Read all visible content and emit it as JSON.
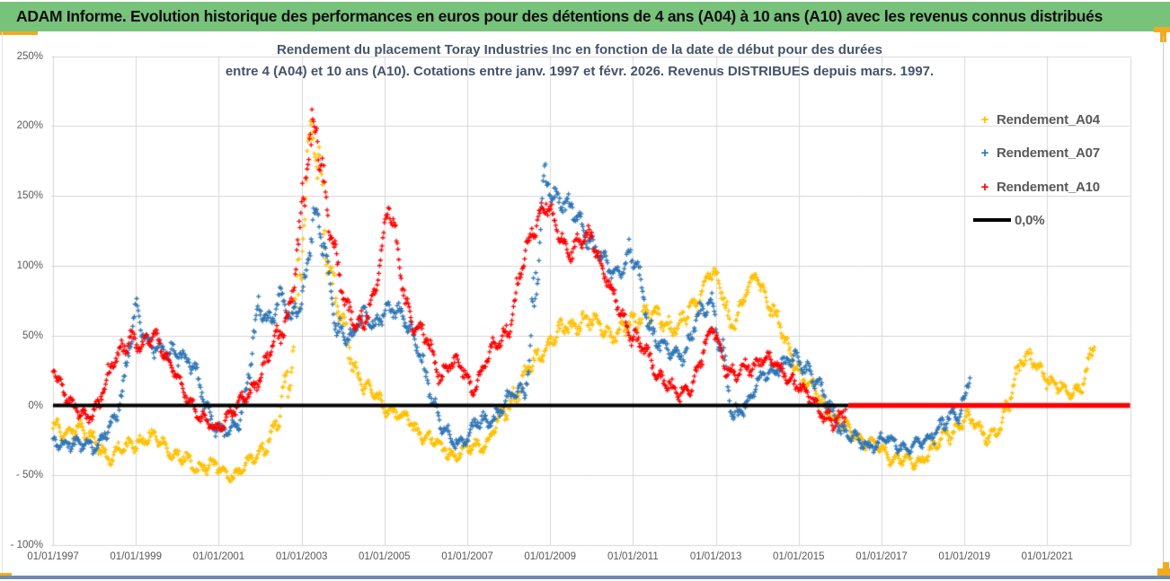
{
  "header": {
    "title": "ADAM Informe. Evolution historique des performances en euros pour des détentions de 4 ans (A04) à 10 ans (A10) avec les revenus connus distribués"
  },
  "chart_data": {
    "type": "scatter",
    "title_line1": "Rendement du placement Toray Industries Inc en fonction de la date de début pour des durées",
    "title_line2": "entre 4 (A04) et 10 ans (A10). Cotations entre janv. 1997 et févr. 2026. Revenus DISTRIBUES depuis mars. 1997.",
    "x_axis": {
      "tick_labels": [
        "01/01/1997",
        "01/01/1999",
        "01/01/2001",
        "01/01/2003",
        "01/01/2005",
        "01/01/2007",
        "01/01/2009",
        "01/01/2011",
        "01/01/2013",
        "01/01/2015",
        "01/01/2017",
        "01/01/2019",
        "01/01/2021"
      ],
      "min_year": 1997,
      "max_year": 2023,
      "tick_step_years": 2,
      "grid": true
    },
    "y_axis": {
      "tick_labels": [
        "250%",
        "200%",
        "150%",
        "100%",
        "50%",
        "0%",
        "- 50%",
        "- 100%"
      ],
      "max": 250,
      "min": -100,
      "step": 50,
      "grid": true
    },
    "legend": [
      {
        "label": "Rendement_A04",
        "color": "#FFC000",
        "marker": "plus"
      },
      {
        "label": "Rendement_A07",
        "color": "#2E75B6",
        "marker": "plus"
      },
      {
        "label": "Rendement_A10",
        "color": "#FF0000",
        "marker": "plus"
      },
      {
        "label": "0,0%",
        "color": "#000000",
        "marker": "line"
      }
    ],
    "series": [
      {
        "name": "Rendement_A04",
        "color": "#FFC000",
        "points_per_year": 52,
        "keypoints": [
          [
            1997.0,
            -15,
            8
          ],
          [
            1997.3,
            -22,
            8
          ],
          [
            1997.6,
            -14,
            8
          ],
          [
            1998.0,
            -28,
            8
          ],
          [
            1998.4,
            -35,
            8
          ],
          [
            1998.8,
            -30,
            8
          ],
          [
            1999.2,
            -23,
            8
          ],
          [
            1999.6,
            -26,
            8
          ],
          [
            2000.0,
            -35,
            8
          ],
          [
            2000.4,
            -44,
            7
          ],
          [
            2000.8,
            -42,
            7
          ],
          [
            2001.2,
            -50,
            6
          ],
          [
            2001.5,
            -47,
            6
          ],
          [
            2001.8,
            -40,
            7
          ],
          [
            2002.1,
            -28,
            8
          ],
          [
            2002.4,
            -15,
            10
          ],
          [
            2002.7,
            20,
            25
          ],
          [
            2003.0,
            120,
            38
          ],
          [
            2003.25,
            195,
            30
          ],
          [
            2003.45,
            160,
            35
          ],
          [
            2003.7,
            95,
            25
          ],
          [
            2003.95,
            60,
            15
          ],
          [
            2004.3,
            25,
            10
          ],
          [
            2004.7,
            8,
            8
          ],
          [
            2005.1,
            -2,
            7
          ],
          [
            2005.5,
            -10,
            7
          ],
          [
            2005.9,
            -20,
            7
          ],
          [
            2006.3,
            -30,
            7
          ],
          [
            2006.7,
            -35,
            7
          ],
          [
            2007.1,
            -31,
            7
          ],
          [
            2007.5,
            -25,
            8
          ],
          [
            2007.9,
            -5,
            10
          ],
          [
            2008.2,
            12,
            10
          ],
          [
            2008.6,
            30,
            10
          ],
          [
            2009.0,
            47,
            10
          ],
          [
            2009.4,
            55,
            10
          ],
          [
            2009.8,
            62,
            9
          ],
          [
            2010.2,
            57,
            9
          ],
          [
            2010.6,
            50,
            9
          ],
          [
            2011.0,
            60,
            10
          ],
          [
            2011.3,
            68,
            9
          ],
          [
            2011.7,
            60,
            9
          ],
          [
            2012.1,
            57,
            9
          ],
          [
            2012.5,
            72,
            10
          ],
          [
            2012.85,
            98,
            8
          ],
          [
            2013.1,
            85,
            10
          ],
          [
            2013.35,
            58,
            8
          ],
          [
            2013.7,
            78,
            10
          ],
          [
            2014.0,
            92,
            8
          ],
          [
            2014.35,
            70,
            10
          ],
          [
            2014.7,
            42,
            9
          ],
          [
            2015.1,
            22,
            8
          ],
          [
            2015.5,
            5,
            8
          ],
          [
            2015.8,
            -8,
            7
          ],
          [
            2016.2,
            -18,
            7
          ],
          [
            2016.6,
            -25,
            7
          ],
          [
            2017.0,
            -33,
            7
          ],
          [
            2017.4,
            -38,
            6
          ],
          [
            2017.8,
            -42,
            6
          ],
          [
            2018.2,
            -32,
            7
          ],
          [
            2018.6,
            -20,
            8
          ],
          [
            2019.0,
            -10,
            8
          ],
          [
            2019.3,
            -14,
            7
          ],
          [
            2019.6,
            -22,
            7
          ],
          [
            2019.9,
            -18,
            8
          ],
          [
            2020.1,
            8,
            16
          ],
          [
            2020.35,
            36,
            10
          ],
          [
            2020.6,
            32,
            9
          ],
          [
            2020.9,
            24,
            8
          ],
          [
            2021.2,
            14,
            8
          ],
          [
            2021.5,
            8,
            7
          ],
          [
            2021.8,
            14,
            8
          ],
          [
            2022.0,
            28,
            10
          ],
          [
            2022.15,
            48,
            8
          ]
        ]
      },
      {
        "name": "Rendement_A07",
        "color": "#2E75B6",
        "points_per_year": 52,
        "keypoints": [
          [
            1997.0,
            -24,
            7
          ],
          [
            1997.4,
            -30,
            7
          ],
          [
            1997.8,
            -26,
            7
          ],
          [
            1998.1,
            -30,
            7
          ],
          [
            1998.4,
            -15,
            9
          ],
          [
            1998.7,
            15,
            12
          ],
          [
            1999.0,
            65,
            12
          ],
          [
            1999.2,
            52,
            10
          ],
          [
            1999.5,
            40,
            9
          ],
          [
            1999.8,
            36,
            9
          ],
          [
            2000.1,
            40,
            9
          ],
          [
            2000.4,
            25,
            9
          ],
          [
            2000.7,
            0,
            9
          ],
          [
            2001.0,
            -18,
            8
          ],
          [
            2001.3,
            -22,
            8
          ],
          [
            2001.6,
            0,
            10
          ],
          [
            2001.95,
            70,
            12
          ],
          [
            2002.2,
            60,
            10
          ],
          [
            2002.5,
            80,
            9
          ],
          [
            2002.75,
            58,
            10
          ],
          [
            2003.05,
            85,
            15
          ],
          [
            2003.3,
            140,
            12
          ],
          [
            2003.55,
            110,
            15
          ],
          [
            2003.85,
            60,
            12
          ],
          [
            2004.2,
            45,
            10
          ],
          [
            2004.5,
            68,
            9
          ],
          [
            2004.8,
            56,
            9
          ],
          [
            2005.1,
            68,
            9
          ],
          [
            2005.35,
            72,
            9
          ],
          [
            2005.7,
            48,
            9
          ],
          [
            2006.0,
            22,
            9
          ],
          [
            2006.35,
            -12,
            9
          ],
          [
            2006.6,
            -26,
            7
          ],
          [
            2006.9,
            -24,
            7
          ],
          [
            2007.2,
            -14,
            7
          ],
          [
            2007.5,
            -11,
            7
          ],
          [
            2007.8,
            -3,
            8
          ],
          [
            2008.1,
            8,
            8
          ],
          [
            2008.4,
            14,
            9
          ],
          [
            2008.6,
            60,
            40
          ],
          [
            2008.85,
            160,
            14
          ],
          [
            2009.1,
            152,
            12
          ],
          [
            2009.4,
            142,
            11
          ],
          [
            2009.7,
            132,
            11
          ],
          [
            2010.0,
            118,
            10
          ],
          [
            2010.3,
            102,
            10
          ],
          [
            2010.6,
            94,
            10
          ],
          [
            2010.9,
            108,
            12
          ],
          [
            2011.1,
            98,
            12
          ],
          [
            2011.4,
            58,
            10
          ],
          [
            2011.7,
            42,
            9
          ],
          [
            2012.0,
            35,
            9
          ],
          [
            2012.3,
            42,
            9
          ],
          [
            2012.6,
            62,
            10
          ],
          [
            2012.9,
            78,
            9
          ],
          [
            2013.15,
            40,
            15
          ],
          [
            2013.4,
            -10,
            8
          ],
          [
            2013.7,
            2,
            8
          ],
          [
            2014.0,
            14,
            8
          ],
          [
            2014.3,
            24,
            8
          ],
          [
            2014.6,
            30,
            8
          ],
          [
            2014.9,
            33,
            8
          ],
          [
            2015.2,
            28,
            8
          ],
          [
            2015.5,
            12,
            8
          ],
          [
            2015.8,
            -4,
            8
          ],
          [
            2016.1,
            -18,
            7
          ],
          [
            2016.45,
            -26,
            7
          ],
          [
            2016.8,
            -28,
            6
          ],
          [
            2017.1,
            -24,
            6
          ],
          [
            2017.4,
            -28,
            6
          ],
          [
            2017.7,
            -30,
            6
          ],
          [
            2018.0,
            -27,
            6
          ],
          [
            2018.3,
            -18,
            7
          ],
          [
            2018.6,
            -11,
            7
          ],
          [
            2018.9,
            -4,
            8
          ],
          [
            2019.05,
            12,
            10
          ],
          [
            2019.15,
            26,
            6
          ]
        ]
      },
      {
        "name": "Rendement_A10",
        "color": "#FF0000",
        "points_per_year": 52,
        "keypoints": [
          [
            1997.0,
            25,
            9
          ],
          [
            1997.25,
            12,
            9
          ],
          [
            1997.5,
            -2,
            8
          ],
          [
            1997.8,
            -10,
            7
          ],
          [
            1998.05,
            0,
            8
          ],
          [
            1998.3,
            18,
            9
          ],
          [
            1998.6,
            38,
            9
          ],
          [
            1998.9,
            52,
            8
          ],
          [
            1999.1,
            40,
            8
          ],
          [
            1999.35,
            48,
            8
          ],
          [
            1999.5,
            52,
            8
          ],
          [
            1999.75,
            32,
            8
          ],
          [
            2000.0,
            18,
            8
          ],
          [
            2000.3,
            4,
            8
          ],
          [
            2000.6,
            -10,
            7
          ],
          [
            2000.9,
            -17,
            7
          ],
          [
            2001.2,
            -8,
            8
          ],
          [
            2001.5,
            0,
            8
          ],
          [
            2001.8,
            12,
            9
          ],
          [
            2002.1,
            28,
            10
          ],
          [
            2002.4,
            48,
            10
          ],
          [
            2002.7,
            68,
            14
          ],
          [
            2002.95,
            115,
            25
          ],
          [
            2003.15,
            180,
            25
          ],
          [
            2003.35,
            210,
            18
          ],
          [
            2003.55,
            150,
            20
          ],
          [
            2003.75,
            112,
            15
          ],
          [
            2004.0,
            82,
            12
          ],
          [
            2004.25,
            62,
            10
          ],
          [
            2004.5,
            54,
            10
          ],
          [
            2004.75,
            80,
            12
          ],
          [
            2004.95,
            120,
            12
          ],
          [
            2005.1,
            142,
            10
          ],
          [
            2005.25,
            120,
            12
          ],
          [
            2005.45,
            85,
            12
          ],
          [
            2005.65,
            62,
            10
          ],
          [
            2005.9,
            52,
            9
          ],
          [
            2006.1,
            40,
            9
          ],
          [
            2006.35,
            22,
            8
          ],
          [
            2006.6,
            30,
            8
          ],
          [
            2006.85,
            27,
            8
          ],
          [
            2007.1,
            13,
            8
          ],
          [
            2007.4,
            26,
            9
          ],
          [
            2007.7,
            44,
            9
          ],
          [
            2008.0,
            56,
            10
          ],
          [
            2008.3,
            92,
            12
          ],
          [
            2008.6,
            130,
            12
          ],
          [
            2008.9,
            145,
            10
          ],
          [
            2009.2,
            122,
            10
          ],
          [
            2009.5,
            110,
            10
          ],
          [
            2009.8,
            118,
            10
          ],
          [
            2010.0,
            122,
            10
          ],
          [
            2010.3,
            96,
            10
          ],
          [
            2010.6,
            72,
            9
          ],
          [
            2010.9,
            55,
            9
          ],
          [
            2011.2,
            42,
            9
          ],
          [
            2011.5,
            28,
            9
          ],
          [
            2011.8,
            18,
            8
          ],
          [
            2012.1,
            4,
            8
          ],
          [
            2012.4,
            16,
            8
          ],
          [
            2012.7,
            38,
            9
          ],
          [
            2012.95,
            55,
            8
          ],
          [
            2013.2,
            32,
            9
          ],
          [
            2013.5,
            20,
            8
          ],
          [
            2013.8,
            28,
            8
          ],
          [
            2014.1,
            33,
            8
          ],
          [
            2014.4,
            30,
            8
          ],
          [
            2014.7,
            22,
            8
          ],
          [
            2015.0,
            12,
            8
          ],
          [
            2015.3,
            6,
            7
          ],
          [
            2015.6,
            -6,
            7
          ],
          [
            2015.85,
            -14,
            8
          ],
          [
            2016.05,
            -10,
            12
          ],
          [
            2016.15,
            2,
            14
          ]
        ]
      }
    ],
    "zero_line": {
      "label": "0,0%",
      "color": "#000000",
      "from_year": 1997.0,
      "to_year": 2016.2,
      "missing_data_overlay": {
        "color": "#FF0000",
        "from_year": 2016.2,
        "to_year": 2023.0
      }
    },
    "plot_style": {
      "gridline_color": "#d7d7d7",
      "tick_color": "#595959",
      "background": "#ffffff"
    }
  },
  "decorations": {
    "header_bg": "#78c37c",
    "accent_gold": "#f2ab20",
    "bottom_bar_blue": "#6d8ab0"
  }
}
